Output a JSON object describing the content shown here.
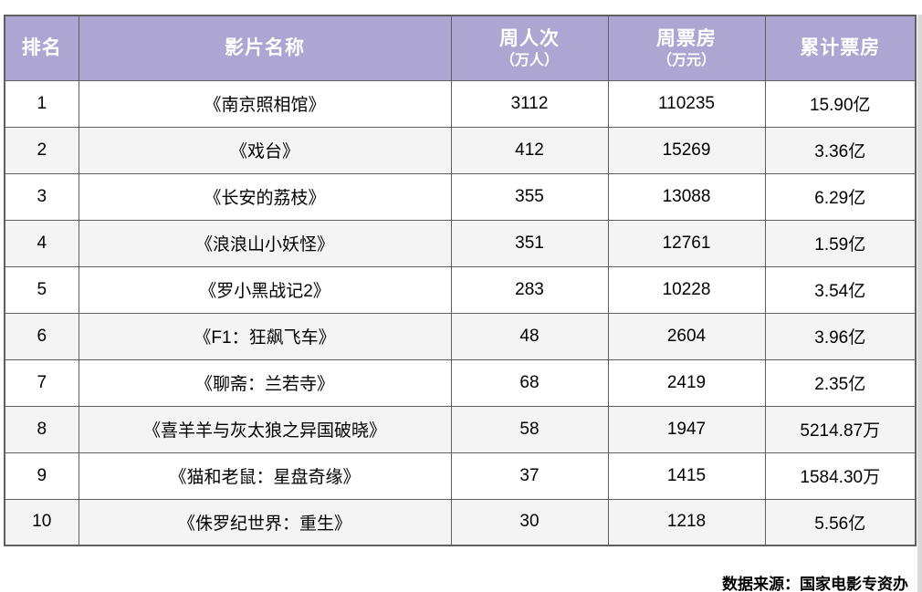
{
  "colors": {
    "header_bg": "#ada6d2",
    "header_text": "#ffffff",
    "border": "#5f5f5f",
    "zebra_row_bg": "#f4f4f5",
    "row_bg": "#ffffff",
    "text": "#000000"
  },
  "chart_data": {
    "type": "table",
    "title": "",
    "columns": [
      {
        "key": "rank",
        "label": "排名",
        "sub": ""
      },
      {
        "key": "film-title",
        "label": "影片名称",
        "sub": ""
      },
      {
        "key": "weekly-admissions",
        "label": "周人次",
        "sub": "（万人）"
      },
      {
        "key": "weekly-box-office",
        "label": "周票房",
        "sub": "（万元）"
      },
      {
        "key": "total-box-office",
        "label": "累计票房",
        "sub": ""
      }
    ],
    "rows": [
      [
        "1",
        "《南京照相馆》",
        "3112",
        "110235",
        "15.90亿"
      ],
      [
        "2",
        "《戏台》",
        "412",
        "15269",
        "3.36亿"
      ],
      [
        "3",
        "《长安的荔枝》",
        "355",
        "13088",
        "6.29亿"
      ],
      [
        "4",
        "《浪浪山小妖怪》",
        "351",
        "12761",
        "1.59亿"
      ],
      [
        "5",
        "《罗小黑战记2》",
        "283",
        "10228",
        "3.54亿"
      ],
      [
        "6",
        "《F1：狂飙飞车》",
        "48",
        "2604",
        "3.96亿"
      ],
      [
        "7",
        "《聊斋：兰若寺》",
        "68",
        "2419",
        "2.35亿"
      ],
      [
        "8",
        "《喜羊羊与灰太狼之异国破晓》",
        "58",
        "1947",
        "5214.87万"
      ],
      [
        "9",
        "《猫和老鼠：星盘奇缘》",
        "37",
        "1415",
        "1584.30万"
      ],
      [
        "10",
        "《侏罗纪世界：重生》",
        "30",
        "1218",
        "5.56亿"
      ]
    ],
    "source_note": "数据来源：国家电影专资办"
  }
}
